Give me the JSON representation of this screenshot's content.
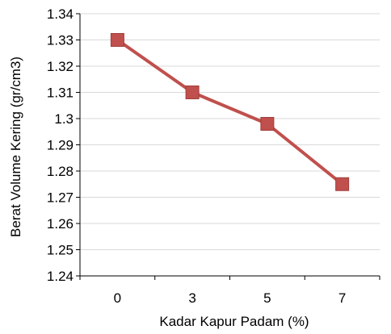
{
  "chart_data": {
    "type": "line",
    "xlabel": "Kadar Kapur Padam (%)",
    "ylabel": "Berat Volume Kering (gr/cm3)",
    "categories": [
      "0",
      "3",
      "5",
      "7"
    ],
    "series": [
      {
        "values": [
          1.33,
          1.31,
          1.298,
          1.275
        ]
      }
    ],
    "ylim": [
      1.24,
      1.34
    ],
    "yticks": [
      "1.24",
      "1.25",
      "1.26",
      "1.27",
      "1.28",
      "1.29",
      "1.3",
      "1.31",
      "1.32",
      "1.33",
      "1.34"
    ],
    "grid": true,
    "legend": "none",
    "colors": {
      "line": "#c0504d",
      "marker": "#c0504d",
      "grid": "#d9d9d9",
      "axis": "#000000"
    }
  }
}
